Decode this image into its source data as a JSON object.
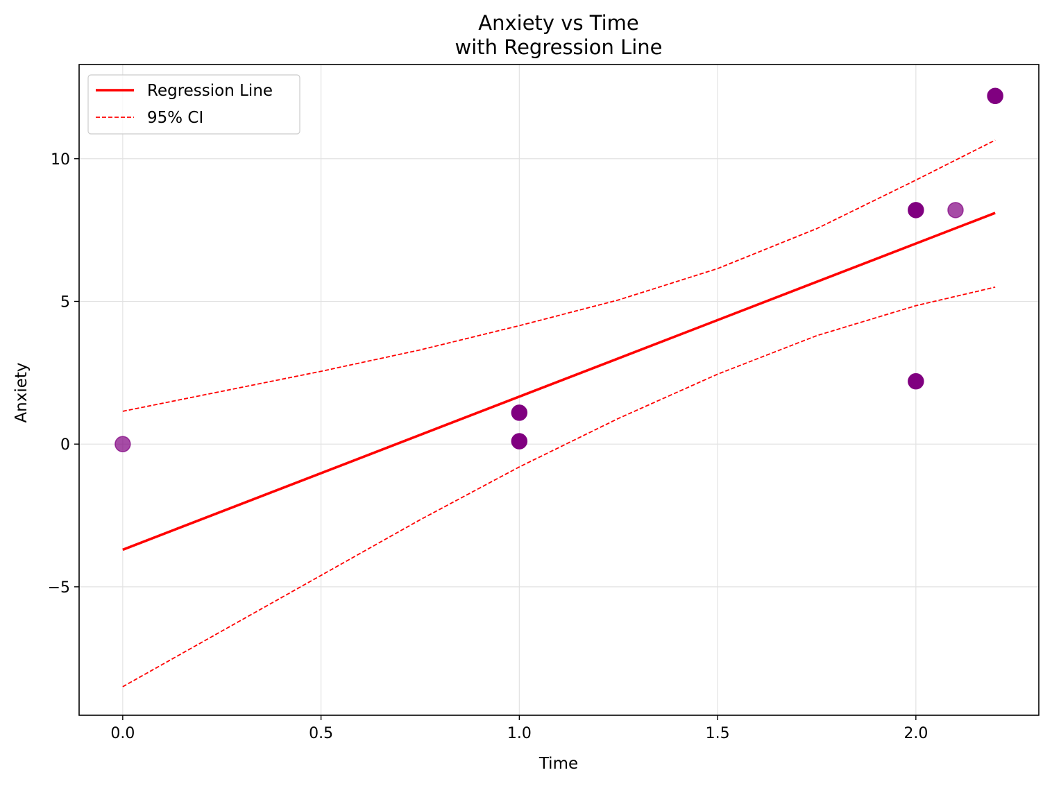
{
  "chart_data": {
    "type": "scatter",
    "title": "Anxiety vs Time",
    "subtitle": "with Regression Line",
    "xlabel": "Time",
    "ylabel": "Anxiety",
    "xlim": [
      -0.11,
      2.31
    ],
    "ylim": [
      -9.5,
      13.3
    ],
    "xticks": [
      0.0,
      0.5,
      1.0,
      1.5,
      2.0
    ],
    "xtick_labels": [
      "0.0",
      "0.5",
      "1.0",
      "1.5",
      "2.0"
    ],
    "yticks": [
      -5,
      0,
      5,
      10
    ],
    "ytick_labels": [
      "−5",
      "0",
      "5",
      "10"
    ],
    "grid": true,
    "legend_position": "top-left",
    "points": [
      {
        "x": 0.0,
        "y": 0.0,
        "alpha": 0.7
      },
      {
        "x": 1.0,
        "y": 1.1,
        "alpha": 1.0
      },
      {
        "x": 1.0,
        "y": 0.1,
        "alpha": 1.0
      },
      {
        "x": 2.0,
        "y": 8.2,
        "alpha": 1.0
      },
      {
        "x": 2.1,
        "y": 8.2,
        "alpha": 0.7
      },
      {
        "x": 2.0,
        "y": 2.2,
        "alpha": 1.0
      },
      {
        "x": 2.2,
        "y": 12.2,
        "alpha": 1.0
      }
    ],
    "point_color": "#800080",
    "series": [
      {
        "name": "Regression Line",
        "style": "solid",
        "color": "#ff0000",
        "x": [
          0.0,
          2.2
        ],
        "y": [
          -3.7,
          8.1
        ]
      },
      {
        "name": "95% CI",
        "style": "dashed",
        "color": "#ff0000",
        "bands": [
          {
            "x": [
              0.0,
              0.25,
              0.5,
              0.75,
              1.0,
              1.25,
              1.5,
              1.75,
              2.0,
              2.2
            ],
            "y": [
              1.15,
              1.85,
              2.55,
              3.3,
              4.15,
              5.05,
              6.15,
              7.55,
              9.25,
              10.65
            ]
          },
          {
            "x": [
              0.0,
              0.25,
              0.5,
              0.75,
              1.0,
              1.25,
              1.5,
              1.75,
              2.0,
              2.2
            ],
            "y": [
              -8.5,
              -6.55,
              -4.6,
              -2.65,
              -0.8,
              0.9,
              2.45,
              3.8,
              4.85,
              5.5
            ]
          }
        ]
      }
    ]
  }
}
